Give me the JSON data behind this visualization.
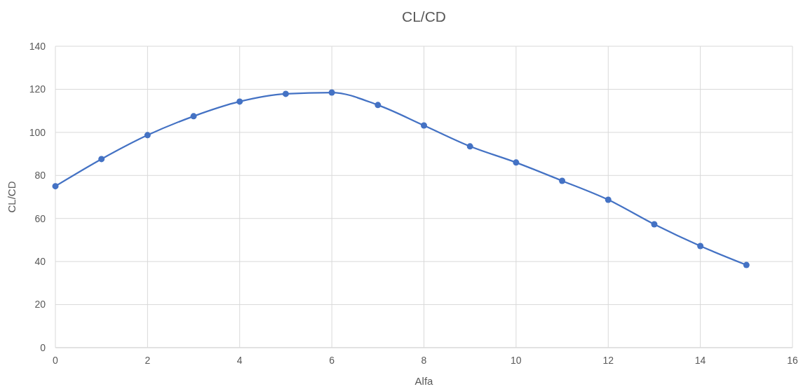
{
  "chart_data": {
    "type": "line",
    "title": "CL/CD",
    "xlabel": "Alfa",
    "ylabel": "CL/CD",
    "x": [
      0,
      1,
      2,
      3,
      4,
      5,
      6,
      7,
      8,
      9,
      10,
      11,
      12,
      13,
      14,
      15
    ],
    "series": [
      {
        "color": "#4472c4",
        "values": [
          75,
          87.6,
          98.7,
          107.5,
          114.3,
          117.9,
          118.5,
          112.7,
          103.2,
          93.5,
          86,
          77.5,
          68.7,
          57.3,
          47.2,
          38.4
        ]
      }
    ],
    "xlim": [
      0,
      16
    ],
    "xticks": [
      0,
      2,
      4,
      6,
      8,
      10,
      12,
      14,
      16
    ],
    "ylim": [
      0,
      140
    ],
    "yticks": [
      0,
      20,
      40,
      60,
      80,
      100,
      120,
      140
    ],
    "grid": true,
    "marker": "circle",
    "line_style": "solid"
  }
}
